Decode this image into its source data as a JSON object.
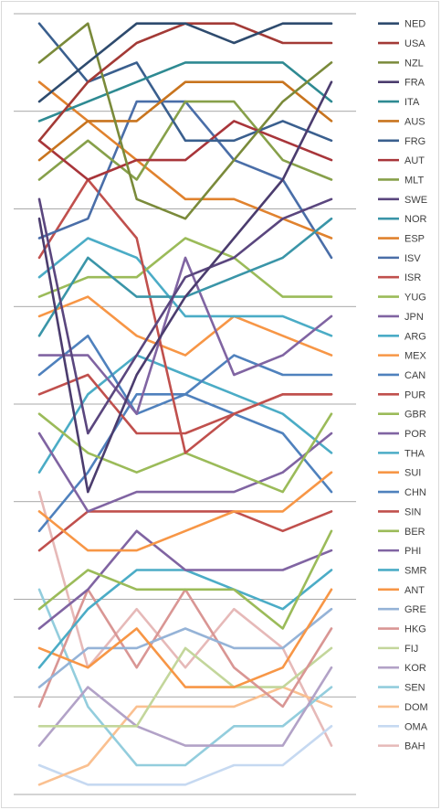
{
  "chart_data": {
    "type": "line",
    "title": "",
    "xlabel": "",
    "ylabel": "",
    "x": [
      1,
      2,
      3,
      4,
      5,
      6,
      7
    ],
    "ylim": [
      0.5,
      40.5
    ],
    "y_inverted": true,
    "grid": "horizontal",
    "legend_position": "right",
    "series": [
      {
        "name": "NED",
        "color": "#2E4B6E",
        "values": [
          5,
          3,
          1,
          1,
          2,
          1,
          1
        ]
      },
      {
        "name": "USA",
        "color": "#A33A36",
        "values": [
          7,
          4,
          2,
          1,
          1,
          2,
          2
        ]
      },
      {
        "name": "NZL",
        "color": "#7A8A3A",
        "values": [
          3,
          1,
          10,
          11,
          8,
          5,
          3
        ]
      },
      {
        "name": "FRA",
        "color": "#4B3C6E",
        "values": [
          11,
          25,
          19,
          15,
          12,
          9,
          4
        ]
      },
      {
        "name": "ITA",
        "color": "#2E8A92",
        "values": [
          6,
          5,
          4,
          3,
          3,
          3,
          5
        ]
      },
      {
        "name": "AUS",
        "color": "#C8741E",
        "values": [
          8,
          6,
          6,
          4,
          4,
          4,
          6
        ]
      },
      {
        "name": "FRG",
        "color": "#3A5F8E",
        "values": [
          1,
          4,
          3,
          7,
          7,
          6,
          7
        ]
      },
      {
        "name": "AUT",
        "color": "#A8353A",
        "values": [
          7,
          9,
          8,
          8,
          6,
          7,
          8
        ]
      },
      {
        "name": "MLT",
        "color": "#87A04A",
        "values": [
          9,
          7,
          9,
          5,
          5,
          8,
          9
        ]
      },
      {
        "name": "SWE",
        "color": "#5A467E",
        "values": [
          10,
          22,
          18,
          14,
          13,
          11,
          10
        ]
      },
      {
        "name": "NOR",
        "color": "#3A95A8",
        "values": [
          17,
          13,
          15,
          15,
          14,
          13,
          11
        ]
      },
      {
        "name": "ESP",
        "color": "#E0822E",
        "values": [
          4,
          6,
          8,
          10,
          10,
          11,
          12
        ]
      },
      {
        "name": "ISV",
        "color": "#4A6EA8",
        "values": [
          12,
          11,
          5,
          5,
          8,
          9,
          13
        ]
      },
      {
        "name": "ISR",
        "color": "#C0504D",
        "values": [
          13,
          9,
          12,
          23,
          21,
          20,
          20
        ]
      },
      {
        "name": "YUG",
        "color": "#9BBB59",
        "values": [
          15,
          14,
          14,
          12,
          13,
          15,
          15
        ]
      },
      {
        "name": "JPN",
        "color": "#8064A2",
        "values": [
          18,
          18,
          21,
          13,
          19,
          18,
          16
        ]
      },
      {
        "name": "ARG",
        "color": "#4BACC6",
        "values": [
          14,
          12,
          13,
          16,
          16,
          16,
          17
        ]
      },
      {
        "name": "MEX",
        "color": "#F79646",
        "values": [
          16,
          15,
          17,
          18,
          16,
          17,
          18
        ]
      },
      {
        "name": "CAN",
        "color": "#4F81BD",
        "values": [
          19,
          17,
          21,
          20,
          18,
          19,
          19
        ]
      },
      {
        "name": "PUR",
        "color": "#C0504D",
        "values": [
          20,
          19,
          22,
          22,
          21,
          20,
          20
        ]
      },
      {
        "name": "GBR",
        "color": "#9BBB59",
        "values": [
          21,
          23,
          24,
          23,
          24,
          25,
          21
        ]
      },
      {
        "name": "POR",
        "color": "#8064A2",
        "values": [
          22,
          26,
          25,
          25,
          25,
          24,
          22
        ]
      },
      {
        "name": "THA",
        "color": "#4BACC6",
        "values": [
          24,
          20,
          18,
          19,
          20,
          21,
          23
        ]
      },
      {
        "name": "SUI",
        "color": "#F79646",
        "values": [
          26,
          28,
          28,
          27,
          26,
          26,
          24
        ]
      },
      {
        "name": "CHN",
        "color": "#4F81BD",
        "values": [
          27,
          24,
          20,
          20,
          21,
          22,
          25
        ]
      },
      {
        "name": "SIN",
        "color": "#C0504D",
        "values": [
          28,
          26,
          26,
          26,
          26,
          27,
          26
        ]
      },
      {
        "name": "BER",
        "color": "#9BBB59",
        "values": [
          31,
          29,
          30,
          30,
          30,
          32,
          27
        ]
      },
      {
        "name": "PHI",
        "color": "#8064A2",
        "values": [
          32,
          30,
          27,
          29,
          29,
          29,
          28
        ]
      },
      {
        "name": "SMR",
        "color": "#4BACC6",
        "values": [
          34,
          31,
          29,
          29,
          30,
          31,
          29
        ]
      },
      {
        "name": "ANT",
        "color": "#F79646",
        "values": [
          33,
          34,
          32,
          35,
          35,
          34,
          30
        ]
      },
      {
        "name": "GRE",
        "color": "#95B3D7",
        "values": [
          35,
          33,
          33,
          32,
          33,
          33,
          31
        ]
      },
      {
        "name": "HKG",
        "color": "#D99694",
        "values": [
          36,
          30,
          34,
          30,
          34,
          36,
          32
        ]
      },
      {
        "name": "FIJ",
        "color": "#C3D69B",
        "values": [
          37,
          37,
          37,
          33,
          35,
          35,
          33
        ]
      },
      {
        "name": "KOR",
        "color": "#B2A2C7",
        "values": [
          38,
          35,
          37,
          38,
          38,
          38,
          34
        ]
      },
      {
        "name": "SEN",
        "color": "#93CDDD",
        "values": [
          30,
          36,
          39,
          39,
          37,
          37,
          35
        ]
      },
      {
        "name": "DOM",
        "color": "#FAC090",
        "values": [
          40,
          39,
          36,
          36,
          36,
          35,
          36
        ]
      },
      {
        "name": "OMA",
        "color": "#C6D9F1",
        "values": [
          39,
          40,
          40,
          40,
          39,
          39,
          37
        ]
      },
      {
        "name": "BAH",
        "color": "#E6B9B8",
        "values": [
          25,
          34,
          31,
          34,
          31,
          33,
          38
        ]
      }
    ]
  }
}
